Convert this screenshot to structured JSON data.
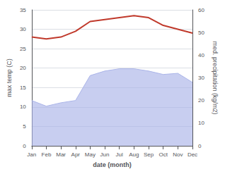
{
  "chart_data": {
    "type": "line",
    "xlabel": "date (month)",
    "ylabel": "max temp (C)",
    "y2label": "med. precipitation (kg/m2)",
    "categories": [
      "Jan",
      "Feb",
      "Mar",
      "Apr",
      "May",
      "Jun",
      "Jul",
      "Aug",
      "Sep",
      "Oct",
      "Nov",
      "Dec"
    ],
    "series": [
      {
        "type": "line",
        "color": "#c0392b",
        "values": [
          28.0,
          27.5,
          28.0,
          29.5,
          32.0,
          32.5,
          33.0,
          33.5,
          33.0,
          31.0,
          30.0,
          29.0
        ]
      },
      {
        "type": "area",
        "axis": "y2",
        "color": "#aab4e8",
        "values": [
          20.0,
          17.5,
          19.0,
          20.0,
          31.0,
          33.0,
          34.0,
          34.0,
          33.0,
          31.5,
          32.0,
          28.0
        ]
      }
    ],
    "ylim": [
      0,
      35
    ],
    "yticks": [
      0,
      5,
      10,
      15,
      20,
      25,
      30,
      35
    ],
    "y2lim": [
      0,
      60
    ],
    "y2ticks": [
      0,
      10,
      20,
      30,
      40,
      50,
      60
    ],
    "grid": true
  }
}
